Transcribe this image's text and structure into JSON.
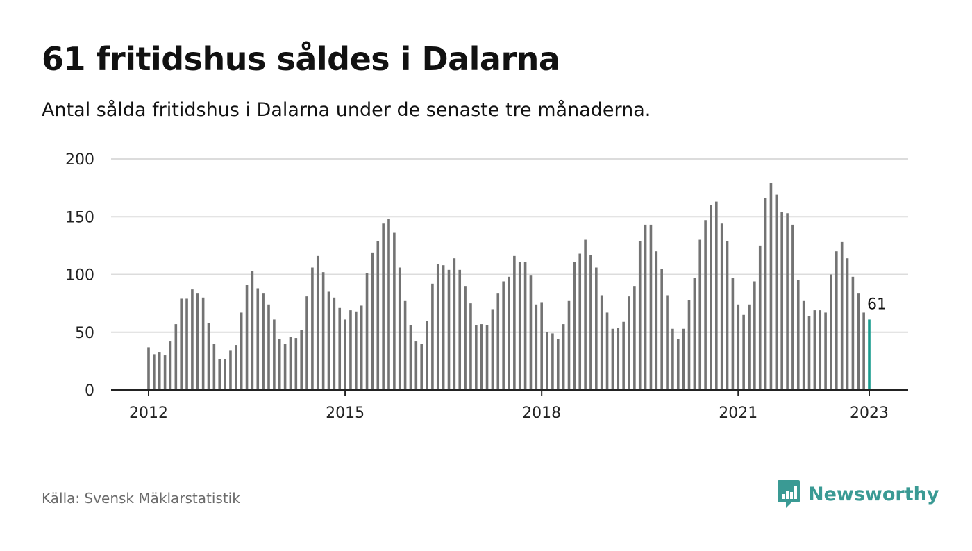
{
  "header": {
    "title": "61 fritidshus såldes i Dalarna",
    "subtitle": "Antal sålda fritidshus i Dalarna under de senaste tre månaderna."
  },
  "footer": {
    "source": "Källa: Svensk Mäklarstatistik",
    "brand": "Newsworthy",
    "brand_icon": "bar-chart-speech-bubble-icon"
  },
  "colors": {
    "bar": "#737373",
    "highlight": "#1a9c8f",
    "grid": "#dcdcdc",
    "axis": "#222222",
    "brand": "#3a9a94"
  },
  "chart_data": {
    "type": "bar",
    "title": "61 fritidshus såldes i Dalarna",
    "xlabel": "",
    "ylabel": "",
    "ylim": [
      0,
      200
    ],
    "yticks": [
      0,
      50,
      100,
      150,
      200
    ],
    "xticks": [
      "2012",
      "2015",
      "2018",
      "2021",
      "2023"
    ],
    "x_start": "2012-01",
    "x_end": "2023-01",
    "grid": true,
    "highlight_label": "61",
    "values": [
      37,
      31,
      33,
      30,
      42,
      57,
      79,
      79,
      87,
      84,
      80,
      58,
      40,
      27,
      27,
      34,
      39,
      67,
      91,
      103,
      88,
      84,
      74,
      61,
      44,
      40,
      46,
      45,
      52,
      81,
      106,
      116,
      102,
      85,
      80,
      71,
      61,
      69,
      68,
      73,
      101,
      119,
      129,
      144,
      148,
      136,
      106,
      77,
      56,
      42,
      40,
      60,
      92,
      109,
      108,
      104,
      114,
      104,
      90,
      75,
      56,
      57,
      56,
      70,
      84,
      94,
      98,
      116,
      111,
      111,
      99,
      74,
      76,
      50,
      49,
      44,
      57,
      77,
      111,
      118,
      130,
      117,
      106,
      82,
      67,
      53,
      54,
      59,
      81,
      90,
      129,
      143,
      143,
      120,
      105,
      82,
      53,
      44,
      53,
      78,
      97,
      130,
      147,
      160,
      163,
      144,
      129,
      97,
      74,
      65,
      74,
      94,
      125,
      166,
      179,
      169,
      154,
      153,
      143,
      95,
      77,
      64,
      69,
      69,
      67,
      100,
      120,
      128,
      114,
      98,
      84,
      67,
      61
    ]
  }
}
